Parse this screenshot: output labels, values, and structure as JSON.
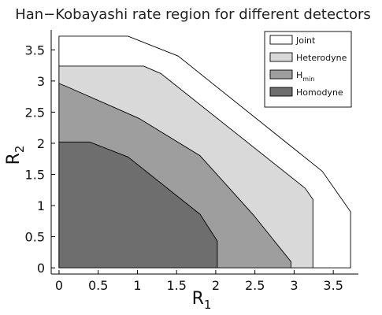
{
  "chart_data": {
    "type": "area",
    "title": "Han−Kobayashi rate region for different detectors",
    "xlabel": {
      "main": "R",
      "sub": "1"
    },
    "ylabel": {
      "main": "R",
      "sub": "2"
    },
    "xlim": [
      -0.1,
      3.82
    ],
    "ylim": [
      -0.1,
      3.82
    ],
    "xticks": [
      {
        "value": 0,
        "label": "0"
      },
      {
        "value": 0.5,
        "label": "0.5"
      },
      {
        "value": 1,
        "label": "1"
      },
      {
        "value": 1.5,
        "label": "1.5"
      },
      {
        "value": 2,
        "label": "2"
      },
      {
        "value": 2.5,
        "label": "2.5"
      },
      {
        "value": 3,
        "label": "3"
      },
      {
        "value": 3.5,
        "label": "3.5"
      }
    ],
    "yticks": [
      {
        "value": 0,
        "label": "0"
      },
      {
        "value": 0.5,
        "label": "0.5"
      },
      {
        "value": 1,
        "label": "1"
      },
      {
        "value": 1.5,
        "label": "1.5"
      },
      {
        "value": 2,
        "label": "2"
      },
      {
        "value": 2.5,
        "label": "2.5"
      },
      {
        "value": 3,
        "label": "3"
      },
      {
        "value": 3.5,
        "label": "3.5"
      }
    ],
    "legend_position": "top-right",
    "grid": false,
    "series": [
      {
        "name": "Joint",
        "color": "#ffffff",
        "points": [
          [
            0,
            0
          ],
          [
            0,
            3.72
          ],
          [
            0.88,
            3.72
          ],
          [
            1.52,
            3.4
          ],
          [
            3.36,
            1.55
          ],
          [
            3.72,
            0.9
          ],
          [
            3.72,
            0
          ]
        ]
      },
      {
        "name": "Heterodyne",
        "color": "#d9d9d9",
        "points": [
          [
            0,
            0
          ],
          [
            0,
            3.24
          ],
          [
            1.08,
            3.24
          ],
          [
            1.3,
            3.12
          ],
          [
            3.14,
            1.28
          ],
          [
            3.24,
            1.1
          ],
          [
            3.24,
            0
          ]
        ]
      },
      {
        "name": "H",
        "name_sub": "min",
        "color": "#9e9e9e",
        "points": [
          [
            0,
            0
          ],
          [
            0,
            2.96
          ],
          [
            0.1,
            2.91
          ],
          [
            1.02,
            2.4
          ],
          [
            1.8,
            1.8
          ],
          [
            2.48,
            0.85
          ],
          [
            2.96,
            0.1
          ],
          [
            2.96,
            0
          ]
        ]
      },
      {
        "name": "Homodyne",
        "color": "#6e6e6e",
        "points": [
          [
            0,
            0
          ],
          [
            0,
            2.02
          ],
          [
            0.39,
            2.02
          ],
          [
            0.88,
            1.78
          ],
          [
            1.8,
            0.86
          ],
          [
            2.02,
            0.43
          ],
          [
            2.02,
            0
          ]
        ]
      }
    ]
  }
}
